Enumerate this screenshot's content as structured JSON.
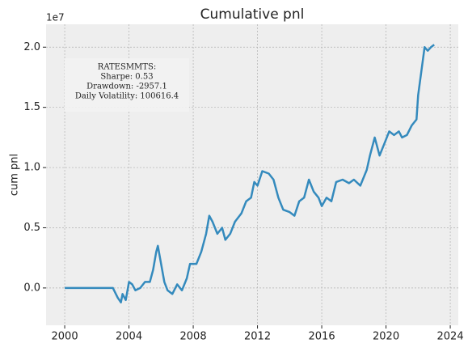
{
  "chart_data": {
    "type": "line",
    "title": "Cumulative pnl",
    "ylabel": "cum pnl",
    "y_offset_label": "1e7",
    "annotation": [
      "RATESMMTS:",
      "Sharpe: 0.53",
      "Drawdown: -2957.1",
      "Daily Volatility: 100616.4"
    ],
    "x": [
      2000,
      2003.0,
      2003.3,
      2003.5,
      2003.6,
      2003.8,
      2004.0,
      2004.2,
      2004.4,
      2004.7,
      2005.0,
      2005.3,
      2005.5,
      2005.7,
      2005.8,
      2006.0,
      2006.2,
      2006.4,
      2006.7,
      2007.0,
      2007.3,
      2007.6,
      2007.8,
      2008.2,
      2008.5,
      2008.8,
      2009.0,
      2009.2,
      2009.5,
      2009.8,
      2010.0,
      2010.3,
      2010.6,
      2011.0,
      2011.3,
      2011.6,
      2011.8,
      2012.0,
      2012.3,
      2012.7,
      2013.0,
      2013.3,
      2013.6,
      2014.0,
      2014.3,
      2014.6,
      2014.9,
      2015.2,
      2015.5,
      2015.8,
      2016.0,
      2016.3,
      2016.6,
      2016.9,
      2017.3,
      2017.7,
      2018.0,
      2018.4,
      2018.8,
      2019.0,
      2019.3,
      2019.6,
      2019.9,
      2020.2,
      2020.5,
      2020.8,
      2021.0,
      2021.3,
      2021.6,
      2021.9,
      2022.0,
      2022.2,
      2022.4,
      2022.6,
      2022.8,
      2023.0
    ],
    "series": [
      {
        "name": "cum pnl",
        "color": "#348ABD",
        "values": [
          0,
          0,
          -0.08,
          -0.12,
          -0.05,
          -0.1,
          0.05,
          0.03,
          -0.02,
          0.0,
          0.05,
          0.05,
          0.15,
          0.3,
          0.35,
          0.2,
          0.05,
          -0.02,
          -0.05,
          0.03,
          -0.02,
          0.08,
          0.2,
          0.2,
          0.3,
          0.45,
          0.6,
          0.55,
          0.45,
          0.5,
          0.4,
          0.45,
          0.55,
          0.62,
          0.72,
          0.75,
          0.88,
          0.85,
          0.97,
          0.95,
          0.9,
          0.75,
          0.65,
          0.63,
          0.6,
          0.72,
          0.75,
          0.9,
          0.8,
          0.75,
          0.68,
          0.75,
          0.72,
          0.88,
          0.9,
          0.87,
          0.9,
          0.85,
          0.98,
          1.1,
          1.25,
          1.1,
          1.2,
          1.3,
          1.27,
          1.3,
          1.25,
          1.27,
          1.35,
          1.4,
          1.6,
          1.8,
          2.0,
          1.97,
          2.0,
          2.02
        ]
      }
    ],
    "xlim": [
      1998.84,
      2024.5
    ],
    "xticks": [
      2000,
      2004,
      2008,
      2012,
      2016,
      2020,
      2024
    ],
    "ylim": [
      -0.31,
      2.19
    ],
    "yticks": [
      {
        "value": 0,
        "label": "0.0"
      },
      {
        "value": 0.5,
        "label": "0.5"
      },
      {
        "value": 1,
        "label": "1.0"
      },
      {
        "value": 1.5,
        "label": "1.5"
      },
      {
        "value": 2,
        "label": "2.0"
      }
    ],
    "grid": true
  }
}
